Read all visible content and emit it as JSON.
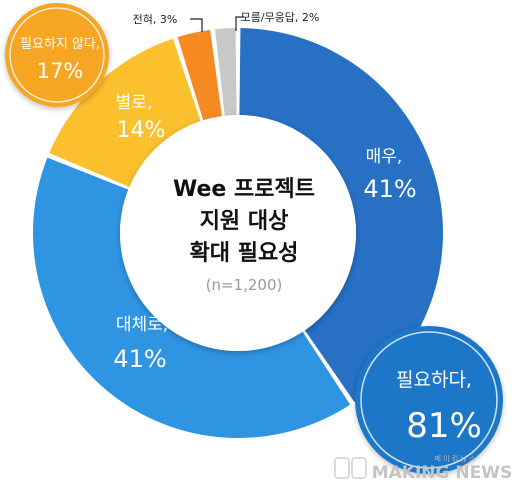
{
  "chart_data": {
    "type": "donut",
    "title_lines": [
      "Wee 프로젝트",
      "지원 대상",
      "확대 필요성"
    ],
    "subtitle": "(n=1,200)",
    "slices": [
      {
        "label": "매우,",
        "value": 41,
        "display": "41%",
        "color": "#2770c4"
      },
      {
        "label": "대체로,",
        "value": 41,
        "display": "41%",
        "color": "#2f94e2"
      },
      {
        "label": "별로,",
        "value": 14,
        "display": "14%",
        "color": "#fbc02d"
      },
      {
        "label": "전혀, 3%",
        "value": 3,
        "display": "",
        "color": "#f58a23"
      },
      {
        "label": "모름/무응답, 2%",
        "value": 2,
        "display": "",
        "color": "#c8c8c8"
      }
    ],
    "groups": [
      {
        "label": "필요하다,",
        "display": "81%",
        "color": "#1f77c9"
      },
      {
        "label": "필요하지 않다,",
        "display": "17%",
        "color": "#f6a623"
      }
    ]
  },
  "watermark": "MAKING NEWS",
  "watermark_sub": "메 이 킹 뉴 스"
}
